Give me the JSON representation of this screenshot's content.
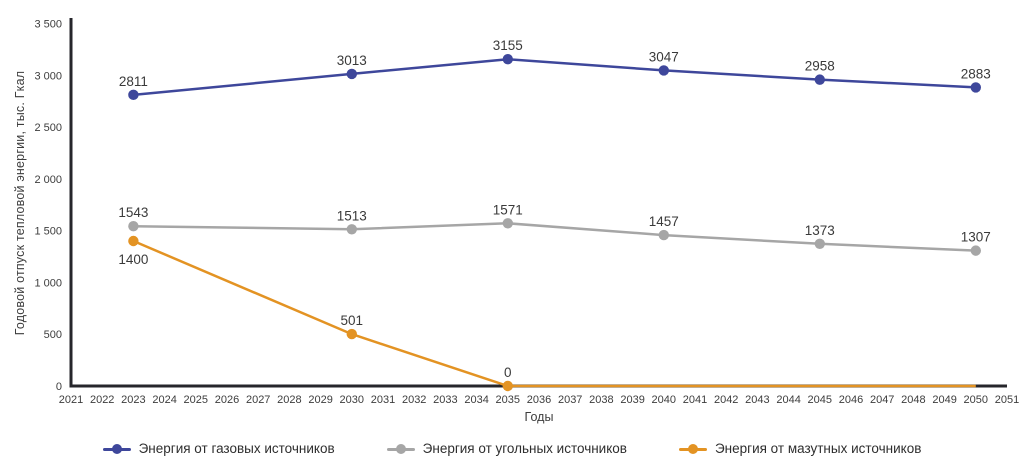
{
  "chart_data": {
    "type": "line",
    "title": "",
    "xlabel": "Годы",
    "ylabel": "Годовой отпуск тепловой энергии, тыс. Гкал",
    "xlim": [
      2021,
      2051
    ],
    "ylim": [
      0,
      3500
    ],
    "x_ticks": [
      2021,
      2022,
      2023,
      2024,
      2025,
      2026,
      2027,
      2028,
      2029,
      2030,
      2031,
      2032,
      2033,
      2034,
      2035,
      2036,
      2037,
      2038,
      2039,
      2040,
      2041,
      2042,
      2043,
      2044,
      2045,
      2046,
      2047,
      2048,
      2049,
      2050,
      2051
    ],
    "y_ticks": [
      0,
      500,
      1000,
      1500,
      2000,
      2500,
      3000,
      3500
    ],
    "grid": false,
    "legend_position": "bottom",
    "axis_color": "#26262b",
    "tick_text_color": "#3d3d3d",
    "point_label_color": "#3a3a3a",
    "series": [
      {
        "name": "Энергия от газовых источников",
        "color": "#3e479b",
        "points": [
          {
            "x": 2023,
            "y": 2811,
            "label": "2811"
          },
          {
            "x": 2030,
            "y": 3013,
            "label": "3013"
          },
          {
            "x": 2035,
            "y": 3155,
            "label": "3155"
          },
          {
            "x": 2040,
            "y": 3047,
            "label": "3047"
          },
          {
            "x": 2045,
            "y": 2958,
            "label": "2958"
          },
          {
            "x": 2050,
            "y": 2883,
            "label": "2883"
          }
        ]
      },
      {
        "name": "Энергия от угольных источников",
        "color": "#a6a6a6",
        "points": [
          {
            "x": 2023,
            "y": 1543,
            "label": "1543"
          },
          {
            "x": 2030,
            "y": 1513,
            "label": "1513"
          },
          {
            "x": 2035,
            "y": 1571,
            "label": "1571"
          },
          {
            "x": 2040,
            "y": 1457,
            "label": "1457"
          },
          {
            "x": 2045,
            "y": 1373,
            "label": "1373"
          },
          {
            "x": 2050,
            "y": 1307,
            "label": "1307"
          }
        ]
      },
      {
        "name": "Энергия от мазутных источников",
        "color": "#e39323",
        "points": [
          {
            "x": 2023,
            "y": 1400,
            "label": "1400",
            "label_pos": "below"
          },
          {
            "x": 2030,
            "y": 501,
            "label": "501"
          },
          {
            "x": 2035,
            "y": 0,
            "label": "0"
          },
          {
            "x": 2040,
            "y": 0,
            "marker": false
          },
          {
            "x": 2045,
            "y": 0,
            "marker": false
          },
          {
            "x": 2050,
            "y": 0,
            "marker": false
          }
        ]
      }
    ]
  }
}
